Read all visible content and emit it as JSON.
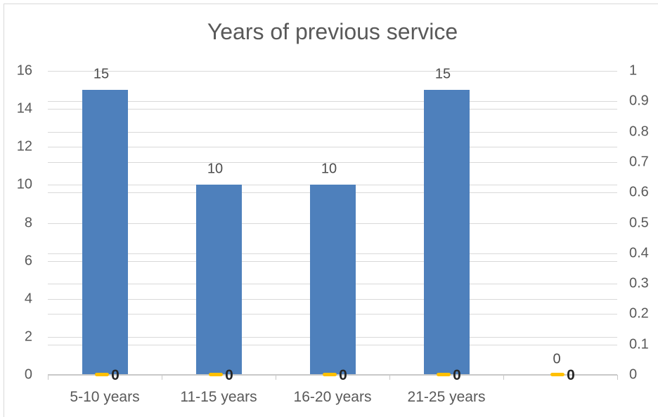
{
  "chart_title": "Years of previous service",
  "colors": {
    "bar_blue": "#4e80bc",
    "dash_orange": "#ffc000",
    "gridline": "#d9d9d9",
    "axis_line": "#c8c8c8",
    "text_gray": "#595959",
    "data_label_gray": "#4d4d4d",
    "zero_label_dark": "#262626",
    "chart_border": "#d9d9d9"
  },
  "chart_data": {
    "type": "bar",
    "title": "Years of previous service",
    "categories": [
      "5-10 years",
      "11-15 years",
      "16-20 years",
      "21-25 years",
      ""
    ],
    "series": [
      {
        "name": "years-count-primary",
        "axis": "primary",
        "color": "#4e80bc",
        "values": [
          15,
          10,
          10,
          15,
          0
        ],
        "data_labels": [
          "15",
          "10",
          "10",
          "15",
          "0"
        ]
      },
      {
        "name": "zero-series-secondary",
        "axis": "secondary",
        "color": "#ffc000",
        "values": [
          0,
          0,
          0,
          0,
          0
        ],
        "data_labels": [
          "0",
          "0",
          "0",
          "0",
          "0"
        ]
      }
    ],
    "primary_axis": {
      "min": 0,
      "max": 16,
      "step": 2,
      "tick_labels": [
        "0",
        "2",
        "4",
        "6",
        "8",
        "10",
        "12",
        "14",
        "16"
      ]
    },
    "secondary_axis": {
      "min": 0,
      "max": 1,
      "step": 0.1,
      "tick_labels": [
        "0",
        "0.1",
        "0.2",
        "0.3",
        "0.4",
        "0.5",
        "0.6",
        "0.7",
        "0.8",
        "0.9",
        "1"
      ]
    },
    "gridlines": "primary-and-secondary",
    "legend": "none"
  }
}
